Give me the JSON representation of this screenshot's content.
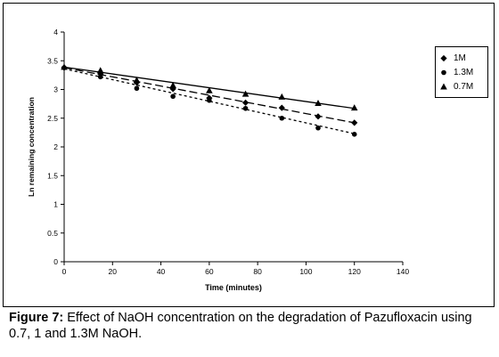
{
  "chart_data": {
    "type": "line",
    "xlabel": "Time (minutes)",
    "ylabel": "Ln remaining concentration",
    "xlim": [
      0,
      140
    ],
    "ylim": [
      0,
      4
    ],
    "x_ticks": [
      "0",
      "20",
      "40",
      "60",
      "80",
      "100",
      "120",
      "140"
    ],
    "y_ticks": [
      "0",
      "0.5",
      "1",
      "1.5",
      "2",
      "2.5",
      "3",
      "3.5",
      "4"
    ],
    "grid": false,
    "legend_position": "right",
    "series": [
      {
        "name": "1M",
        "marker": "diamond",
        "line_style": "long-dash",
        "x": [
          0,
          15,
          30,
          45,
          60,
          75,
          90,
          105,
          120
        ],
        "y": [
          3.38,
          3.27,
          3.12,
          3.01,
          2.85,
          2.77,
          2.68,
          2.53,
          2.42
        ],
        "fit": [
          [
            0,
            3.38
          ],
          [
            120,
            2.42
          ]
        ]
      },
      {
        "name": "1.3M",
        "marker": "circle",
        "line_style": "short-dash",
        "x": [
          0,
          15,
          30,
          45,
          60,
          75,
          90,
          105,
          120
        ],
        "y": [
          3.38,
          3.22,
          3.02,
          2.88,
          2.81,
          2.67,
          2.5,
          2.33,
          2.22
        ],
        "fit": [
          [
            0,
            3.36
          ],
          [
            120,
            2.23
          ]
        ]
      },
      {
        "name": "0.7M",
        "marker": "triangle",
        "line_style": "solid",
        "x": [
          0,
          15,
          30,
          45,
          60,
          75,
          90,
          105,
          120
        ],
        "y": [
          3.39,
          3.33,
          3.16,
          3.07,
          2.98,
          2.92,
          2.87,
          2.76,
          2.68
        ],
        "fit": [
          [
            0,
            3.39
          ],
          [
            120,
            2.67
          ]
        ]
      }
    ]
  },
  "caption": {
    "label": "Figure 7:",
    "text": " Effect of NaOH concentration on the degradation of Pazufloxacin using 0.7, 1 and 1.3M NaOH."
  }
}
